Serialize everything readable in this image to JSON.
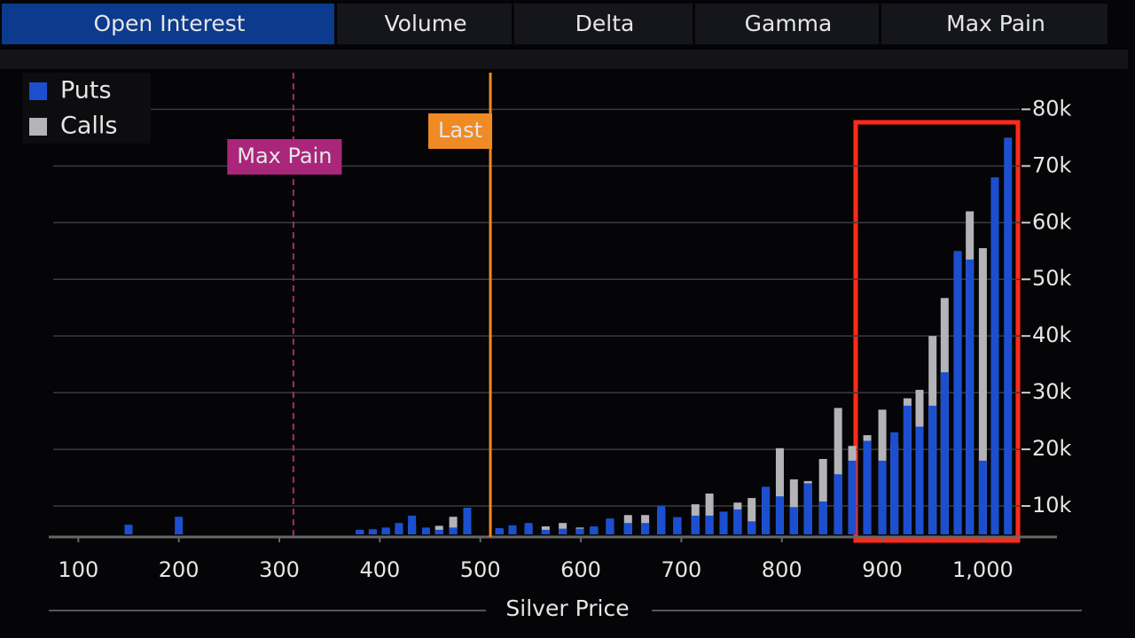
{
  "tabs": [
    "Open Interest",
    "Volume",
    "Delta",
    "Gamma",
    "Max Pain"
  ],
  "active_tab": 0,
  "chart_data": {
    "type": "bar",
    "x_label": "Silver Price",
    "x": [
      150,
      200,
      380,
      393,
      406,
      419,
      432,
      446,
      459,
      473,
      487,
      519,
      532,
      548,
      565,
      582,
      599,
      613,
      629,
      647,
      664,
      680,
      696,
      714,
      728,
      742,
      756,
      770,
      784,
      798,
      812,
      826,
      841,
      856,
      870,
      885,
      900,
      912,
      925,
      937,
      950,
      962,
      975,
      987,
      1000,
      1012,
      1025
    ],
    "series": [
      {
        "name": "Calls",
        "color": "#b4b4b8",
        "values": [
          5500,
          5300,
          5500,
          5600,
          5800,
          6000,
          6500,
          6000,
          6500,
          8100,
          6200,
          5800,
          6000,
          6300,
          6400,
          7000,
          6200,
          6100,
          7300,
          8400,
          8400,
          9400,
          8000,
          10300,
          12200,
          8800,
          10600,
          11400,
          12800,
          20200,
          14700,
          14400,
          18300,
          27300,
          20600,
          22500,
          27000,
          21000,
          29000,
          30500,
          40000,
          46700,
          54500,
          62000,
          55500,
          null,
          null
        ]
      },
      {
        "name": "Puts",
        "color": "#1c4fd0",
        "values": [
          6700,
          8100,
          5800,
          5900,
          6200,
          7000,
          8300,
          6200,
          5800,
          6200,
          9700,
          6100,
          6600,
          7000,
          5800,
          6000,
          6000,
          6400,
          7800,
          7000,
          7000,
          10000,
          8000,
          8300,
          8300,
          9000,
          9400,
          7300,
          13400,
          11700,
          9800,
          14000,
          10800,
          15600,
          18000,
          21500,
          18000,
          23000,
          27700,
          24000,
          27700,
          33600,
          55000,
          53500,
          18000,
          68000,
          75000
        ]
      }
    ],
    "xlim": [
      75,
      1072
    ],
    "xticks": [
      100,
      200,
      300,
      400,
      500,
      600,
      700,
      800,
      900,
      {
        "value": 1000,
        "label": "1,000"
      }
    ],
    "ylim": [
      5000,
      86000
    ],
    "yticks": [
      {
        "value": 10000,
        "label": "10k"
      },
      {
        "value": 20000,
        "label": "20k"
      },
      {
        "value": 30000,
        "label": "30k"
      },
      {
        "value": 40000,
        "label": "40k"
      },
      {
        "value": 50000,
        "label": "50k"
      },
      {
        "value": 60000,
        "label": "60k"
      },
      {
        "value": 70000,
        "label": "70k"
      },
      {
        "value": 80000,
        "label": "80k"
      }
    ],
    "grid": true,
    "legend": "top-left",
    "annotations": [
      {
        "label": "Max Pain",
        "x": 314,
        "color": "#a9267a",
        "style": "dashed"
      },
      {
        "label": "Last",
        "x": 510,
        "color": "#f08a24",
        "style": "solid"
      }
    ]
  }
}
